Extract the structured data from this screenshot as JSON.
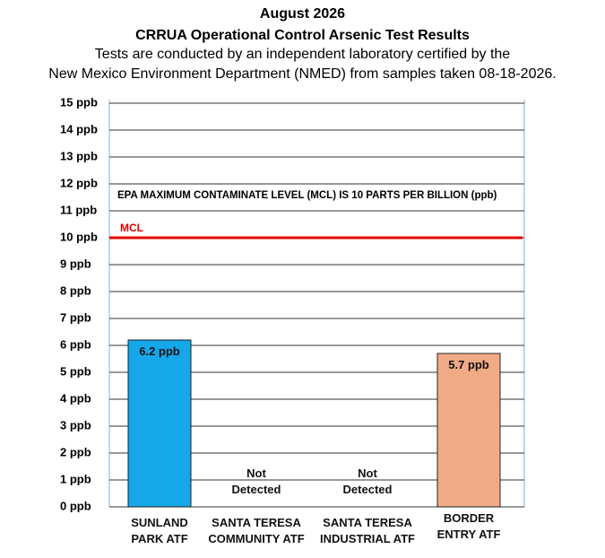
{
  "chart_data": {
    "type": "bar",
    "title": "August 2026",
    "subtitle": "CRRUA Operational Control Arsenic Test Results",
    "description": [
      "Tests are conducted by an independent laboratory certified by the",
      "New Mexico Environment Department (NMED) from samples taken 08-18-2026."
    ],
    "categories": [
      "SUNLAND PARK ATF",
      "SANTA TERESA COMMUNITY ATF",
      "SANTA TERESA INDUSTRIAL ATF",
      "BORDER ENTRY ATF"
    ],
    "values": [
      6.2,
      null,
      null,
      5.7
    ],
    "value_labels": [
      "6.2 ppb",
      "Not Detected",
      "Not Detected",
      "5.7 ppb"
    ],
    "colors": [
      "#16a7ea",
      null,
      null,
      "#f1aa86"
    ],
    "ylim": [
      0,
      15
    ],
    "yticks": [
      {
        "value": 0,
        "label": "0 ppb"
      },
      {
        "value": 1,
        "label": "1 ppb"
      },
      {
        "value": 2,
        "label": "2 ppb"
      },
      {
        "value": 3,
        "label": "3 ppb"
      },
      {
        "value": 4,
        "label": "4 ppb"
      },
      {
        "value": 5,
        "label": "5 ppb"
      },
      {
        "value": 6,
        "label": "6 ppb"
      },
      {
        "value": 7,
        "label": "7 ppb"
      },
      {
        "value": 8,
        "label": "8 ppb"
      },
      {
        "value": 9,
        "label": "9 ppb"
      },
      {
        "value": 10,
        "label": "10 ppb"
      },
      {
        "value": 11,
        "label": "11 ppb"
      },
      {
        "value": 12,
        "label": "12 ppb"
      },
      {
        "value": 13,
        "label": "13 ppb"
      },
      {
        "value": 14,
        "label": "14 ppb"
      },
      {
        "value": 15,
        "label": "15 ppb"
      }
    ],
    "grid": true,
    "reference_line": {
      "value": 10,
      "label": "MCL",
      "color": "#e00000"
    },
    "annotation": "EPA MAXIMUM CONTAMINATE LEVEL (MCL) IS 10 PARTS PER BILLION (ppb)"
  }
}
